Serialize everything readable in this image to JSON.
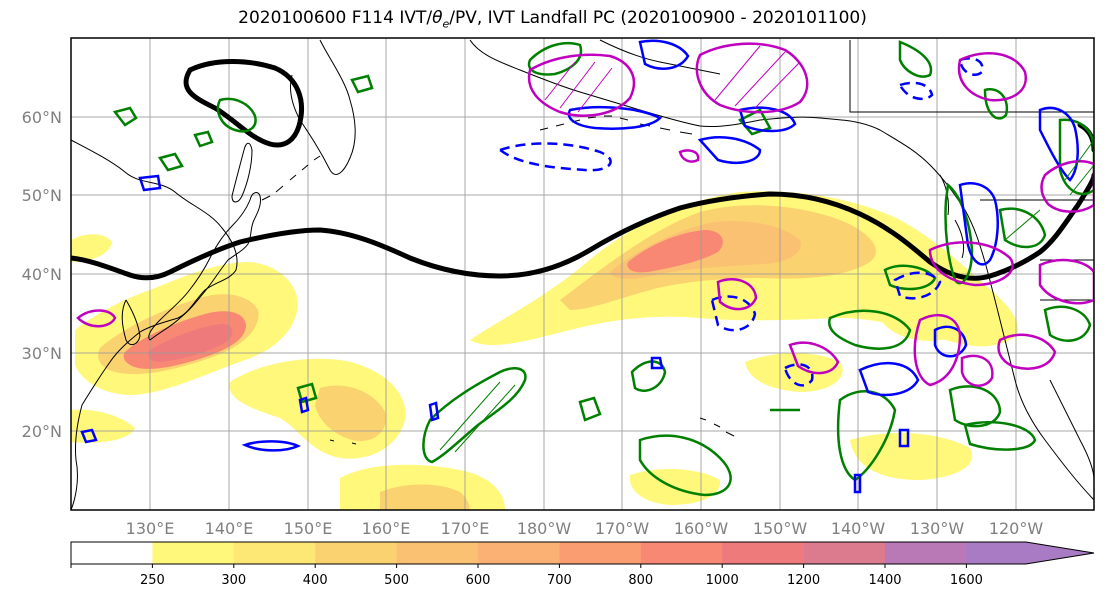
{
  "title": {
    "prefix": "2020100600 F114 IVT/",
    "theta": "θ",
    "theta_sub": "e",
    "suffix": "/PV, IVT Landfall PC (2020100900 - 2020101100)"
  },
  "map": {
    "lon_ticks": [
      "130°E",
      "140°E",
      "150°E",
      "160°E",
      "170°E",
      "180°W",
      "170°W",
      "160°W",
      "150°W",
      "140°W",
      "130°W",
      "120°W"
    ],
    "lat_ticks": [
      "60°N",
      "50°N",
      "40°N",
      "30°N",
      "20°N"
    ],
    "gridlines": true
  },
  "colorbar": {
    "labels": [
      "250",
      "300",
      "400",
      "500",
      "600",
      "700",
      "800",
      "1000",
      "1200",
      "1400",
      "1600"
    ],
    "colors": [
      "#ffffff",
      "#fff87a",
      "#fde876",
      "#fbd270",
      "#fbc172",
      "#fbb173",
      "#fa9e72",
      "#f88874",
      "#ef7a7b",
      "#dc7a8e",
      "#b879b6",
      "#a97bc4"
    ],
    "extend": "max"
  },
  "contour_colors": {
    "streamfunction": "#000000",
    "green": "#008000",
    "blue": "#0000ff",
    "magenta": "#c000c0"
  }
}
